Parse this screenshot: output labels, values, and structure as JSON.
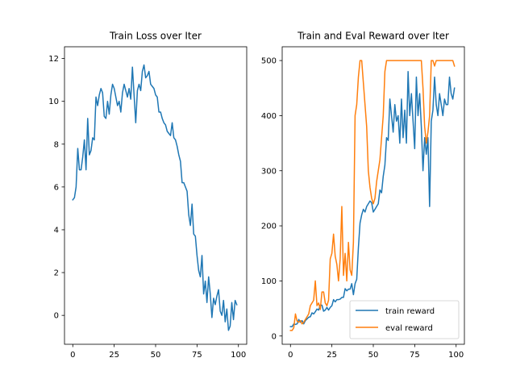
{
  "chart_data": [
    {
      "type": "line",
      "title": "Train Loss over Iter",
      "xlabel": "",
      "ylabel": "",
      "xlim": [
        -5,
        105
      ],
      "ylim": [
        -1.35,
        12.55
      ],
      "xticks": [
        0,
        25,
        50,
        75,
        100
      ],
      "yticks": [
        0,
        2,
        4,
        6,
        8,
        10,
        12
      ],
      "grid": false,
      "legend": null,
      "series": [
        {
          "color": "#1f77b4",
          "x": [
            0,
            1,
            2,
            3,
            4,
            5,
            6,
            7,
            8,
            9,
            10,
            11,
            12,
            13,
            14,
            15,
            16,
            17,
            18,
            19,
            20,
            21,
            22,
            23,
            24,
            25,
            26,
            27,
            28,
            29,
            30,
            31,
            32,
            33,
            34,
            35,
            36,
            37,
            38,
            39,
            40,
            41,
            42,
            43,
            44,
            45,
            46,
            47,
            48,
            49,
            50,
            51,
            52,
            53,
            54,
            55,
            56,
            57,
            58,
            59,
            60,
            61,
            62,
            63,
            64,
            65,
            66,
            67,
            68,
            69,
            70,
            71,
            72,
            73,
            74,
            75,
            76,
            77,
            78,
            79,
            80,
            81,
            82,
            83,
            84,
            85,
            86,
            87,
            88,
            89,
            90,
            91,
            92,
            93,
            94,
            95,
            96,
            97,
            98,
            99
          ],
          "values": [
            5.4,
            5.5,
            6.0,
            7.8,
            6.8,
            6.8,
            7.4,
            8.2,
            6.8,
            9.2,
            7.5,
            7.7,
            8.3,
            8.2,
            10.2,
            9.8,
            10.3,
            10.6,
            10.4,
            9.3,
            9.2,
            10.0,
            9.4,
            10.3,
            10.8,
            10.6,
            10.2,
            9.8,
            10.0,
            9.5,
            10.4,
            10.8,
            10.5,
            10.2,
            10.6,
            10.1,
            11.6,
            10.3,
            9.0,
            10.5,
            10.8,
            10.5,
            11.4,
            11.7,
            11.1,
            11.2,
            11.4,
            10.8,
            10.7,
            10.6,
            10.3,
            10.2,
            9.5,
            9.5,
            9.2,
            9.0,
            8.9,
            8.6,
            8.5,
            8.4,
            9.0,
            8.3,
            8.2,
            7.9,
            7.5,
            7.2,
            6.2,
            6.2,
            6.0,
            5.8,
            4.7,
            4.2,
            5.2,
            3.8,
            3.7,
            2.8,
            2.1,
            1.8,
            2.8,
            1.0,
            1.6,
            0.6,
            1.8,
            1.0,
            -0.1,
            0.8,
            0.5,
            0.9,
            1.2,
            0.2,
            0.0,
            0.7,
            -0.3,
            0.3,
            -0.7,
            -0.5,
            0.6,
            -0.2,
            0.7,
            0.5
          ]
        }
      ]
    },
    {
      "type": "line",
      "title": "Train and Eval Reward over Iter",
      "xlabel": "",
      "ylabel": "",
      "xlim": [
        -5,
        105
      ],
      "ylim": [
        -15,
        525
      ],
      "xticks": [
        0,
        25,
        50,
        75,
        100
      ],
      "yticks": [
        0,
        100,
        200,
        300,
        400,
        500
      ],
      "grid": false,
      "legend": "lower-right",
      "series": [
        {
          "name": "train reward",
          "color": "#1f77b4",
          "x": [
            0,
            1,
            2,
            3,
            4,
            5,
            6,
            7,
            8,
            9,
            10,
            11,
            12,
            13,
            14,
            15,
            16,
            17,
            18,
            19,
            20,
            21,
            22,
            23,
            24,
            25,
            26,
            27,
            28,
            29,
            30,
            31,
            32,
            33,
            34,
            35,
            36,
            37,
            38,
            39,
            40,
            41,
            42,
            43,
            44,
            45,
            46,
            47,
            48,
            49,
            50,
            51,
            52,
            53,
            54,
            55,
            56,
            57,
            58,
            59,
            60,
            61,
            62,
            63,
            64,
            65,
            66,
            67,
            68,
            69,
            70,
            71,
            72,
            73,
            74,
            75,
            76,
            77,
            78,
            79,
            80,
            81,
            82,
            83,
            84,
            85,
            86,
            87,
            88,
            89,
            90,
            91,
            92,
            93,
            94,
            95,
            96,
            97,
            98,
            99
          ],
          "values": [
            17,
            17,
            22,
            21,
            22,
            30,
            25,
            28,
            22,
            28,
            31,
            34,
            35,
            42,
            40,
            44,
            49,
            47,
            56,
            56,
            45,
            47,
            52,
            47,
            52,
            55,
            66,
            62,
            66,
            66,
            67,
            70,
            70,
            86,
            82,
            85,
            85,
            95,
            75,
            95,
            103,
            160,
            205,
            220,
            230,
            225,
            235,
            240,
            245,
            242,
            225,
            230,
            235,
            240,
            265,
            260,
            290,
            310,
            360,
            355,
            430,
            400,
            370,
            420,
            390,
            400,
            350,
            430,
            360,
            410,
            350,
            480,
            400,
            440,
            390,
            340,
            470,
            400,
            440,
            380,
            300,
            360,
            330,
            360,
            235,
            390,
            410,
            470,
            420,
            400,
            440,
            420,
            400,
            430,
            420,
            420,
            470,
            440,
            430,
            450
          ]
        },
        {
          "name": "eval reward",
          "color": "#ff7f0e",
          "x": [
            0,
            1,
            2,
            3,
            4,
            5,
            6,
            7,
            8,
            9,
            10,
            11,
            12,
            13,
            14,
            15,
            16,
            17,
            18,
            19,
            20,
            21,
            22,
            23,
            24,
            25,
            26,
            27,
            28,
            29,
            30,
            31,
            32,
            33,
            34,
            35,
            36,
            37,
            38,
            39,
            40,
            41,
            42,
            43,
            44,
            45,
            46,
            47,
            48,
            49,
            50,
            51,
            52,
            53,
            54,
            55,
            56,
            57,
            58,
            59,
            60,
            61,
            62,
            63,
            64,
            65,
            66,
            67,
            68,
            69,
            70,
            71,
            72,
            73,
            74,
            75,
            76,
            77,
            78,
            79,
            80,
            81,
            82,
            83,
            84,
            85,
            86,
            87,
            88,
            89,
            90,
            91,
            92,
            93,
            94,
            95,
            96,
            97,
            98,
            99
          ],
          "values": [
            10,
            10,
            15,
            40,
            27,
            25,
            28,
            22,
            25,
            30,
            35,
            40,
            55,
            60,
            65,
            100,
            55,
            60,
            48,
            80,
            80,
            60,
            55,
            65,
            140,
            150,
            185,
            145,
            130,
            100,
            140,
            235,
            110,
            150,
            100,
            170,
            120,
            110,
            170,
            400,
            420,
            470,
            500,
            500,
            460,
            420,
            380,
            300,
            270,
            250,
            240,
            250,
            280,
            300,
            320,
            360,
            400,
            480,
            500,
            500,
            500,
            500,
            500,
            500,
            500,
            500,
            500,
            500,
            500,
            500,
            500,
            500,
            500,
            500,
            500,
            500,
            500,
            500,
            500,
            500,
            450,
            380,
            350,
            370,
            400,
            500,
            500,
            490,
            500,
            500,
            500,
            500,
            500,
            500,
            500,
            500,
            500,
            500,
            500,
            490
          ]
        }
      ]
    }
  ]
}
